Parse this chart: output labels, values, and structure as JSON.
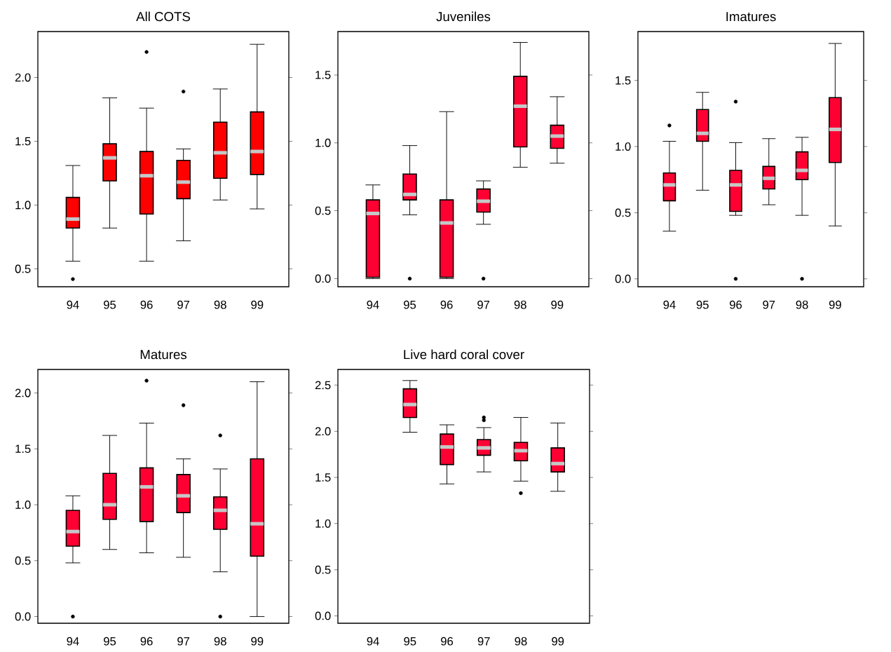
{
  "chart_data": [
    {
      "type": "box",
      "title": "All COTS",
      "categories": [
        "94",
        "95",
        "96",
        "97",
        "98",
        "99"
      ],
      "color": "#ff0000",
      "ylim": [
        0.36,
        2.36
      ],
      "yticks": [
        {
          "value": 0.5,
          "label": "0.5"
        },
        {
          "value": 1.0,
          "label": "1.0"
        },
        {
          "value": 1.5,
          "label": "1.5"
        },
        {
          "value": 2.0,
          "label": "2.0"
        }
      ],
      "boxes": [
        {
          "low": 0.56,
          "q1": 0.82,
          "median": 0.89,
          "q3": 1.06,
          "high": 1.31,
          "outliers": [
            0.42
          ]
        },
        {
          "low": 0.82,
          "q1": 1.19,
          "median": 1.37,
          "q3": 1.48,
          "high": 1.84
        },
        {
          "low": 0.56,
          "q1": 0.93,
          "median": 1.23,
          "q3": 1.42,
          "high": 1.76,
          "outliers": [
            2.2
          ]
        },
        {
          "low": 0.72,
          "q1": 1.05,
          "median": 1.18,
          "q3": 1.35,
          "high": 1.44,
          "outliers": [
            1.89
          ]
        },
        {
          "low": 1.04,
          "q1": 1.21,
          "median": 1.41,
          "q3": 1.65,
          "high": 1.91
        },
        {
          "low": 0.97,
          "q1": 1.24,
          "median": 1.42,
          "q3": 1.73,
          "high": 2.26
        }
      ]
    },
    {
      "type": "box",
      "title": "Juveniles",
      "categories": [
        "94",
        "95",
        "96",
        "97",
        "98",
        "99"
      ],
      "color": "#ff0033",
      "ylim": [
        -0.06,
        1.82
      ],
      "yticks": [
        {
          "value": 0.0,
          "label": "0.0"
        },
        {
          "value": 0.5,
          "label": "0.5"
        },
        {
          "value": 1.0,
          "label": "1.0"
        },
        {
          "value": 1.5,
          "label": "1.5"
        }
      ],
      "boxes": [
        {
          "low": 0.0,
          "q1": 0.01,
          "median": 0.48,
          "q3": 0.58,
          "high": 0.69
        },
        {
          "low": 0.47,
          "q1": 0.58,
          "median": 0.62,
          "q3": 0.77,
          "high": 0.98,
          "outliers": [
            0.0
          ]
        },
        {
          "low": 0.0,
          "q1": 0.01,
          "median": 0.41,
          "q3": 0.58,
          "high": 1.23
        },
        {
          "low": 0.4,
          "q1": 0.49,
          "median": 0.57,
          "q3": 0.66,
          "high": 0.72,
          "outliers": [
            0.0
          ]
        },
        {
          "low": 0.82,
          "q1": 0.97,
          "median": 1.27,
          "q3": 1.49,
          "high": 1.74
        },
        {
          "low": 0.85,
          "q1": 0.96,
          "median": 1.05,
          "q3": 1.13,
          "high": 1.34
        }
      ]
    },
    {
      "type": "box",
      "title": "Imatures",
      "categories": [
        "94",
        "95",
        "96",
        "97",
        "98",
        "99"
      ],
      "color": "#ff0033",
      "ylim": [
        -0.06,
        1.87
      ],
      "yticks": [
        {
          "value": 0.0,
          "label": "0.0"
        },
        {
          "value": 0.5,
          "label": "0.5"
        },
        {
          "value": 1.0,
          "label": "1.0"
        },
        {
          "value": 1.5,
          "label": "1.5"
        }
      ],
      "boxes": [
        {
          "low": 0.36,
          "q1": 0.59,
          "median": 0.71,
          "q3": 0.8,
          "high": 1.04,
          "outliers": [
            1.16
          ]
        },
        {
          "low": 0.67,
          "q1": 1.04,
          "median": 1.1,
          "q3": 1.28,
          "high": 1.41
        },
        {
          "low": 0.48,
          "q1": 0.51,
          "median": 0.71,
          "q3": 0.82,
          "high": 1.03,
          "outliers": [
            1.34,
            0.0
          ]
        },
        {
          "low": 0.56,
          "q1": 0.68,
          "median": 0.76,
          "q3": 0.85,
          "high": 1.06
        },
        {
          "low": 0.48,
          "q1": 0.75,
          "median": 0.82,
          "q3": 0.96,
          "high": 1.07,
          "outliers": [
            0.0
          ]
        },
        {
          "low": 0.4,
          "q1": 0.88,
          "median": 1.13,
          "q3": 1.37,
          "high": 1.78
        }
      ]
    },
    {
      "type": "box",
      "title": "Matures",
      "categories": [
        "94",
        "95",
        "96",
        "97",
        "98",
        "99"
      ],
      "color": "#ff0033",
      "ylim": [
        -0.06,
        2.21
      ],
      "yticks": [
        {
          "value": 0.0,
          "label": "0.0"
        },
        {
          "value": 0.5,
          "label": "0.5"
        },
        {
          "value": 1.0,
          "label": "1.0"
        },
        {
          "value": 1.5,
          "label": "1.5"
        },
        {
          "value": 2.0,
          "label": "2.0"
        }
      ],
      "boxes": [
        {
          "low": 0.48,
          "q1": 0.63,
          "median": 0.76,
          "q3": 0.95,
          "high": 1.08,
          "outliers": [
            0.0
          ]
        },
        {
          "low": 0.6,
          "q1": 0.87,
          "median": 1.0,
          "q3": 1.28,
          "high": 1.62
        },
        {
          "low": 0.57,
          "q1": 0.85,
          "median": 1.16,
          "q3": 1.33,
          "high": 1.73,
          "outliers": [
            2.11
          ]
        },
        {
          "low": 0.53,
          "q1": 0.93,
          "median": 1.08,
          "q3": 1.27,
          "high": 1.41,
          "outliers": [
            1.89
          ]
        },
        {
          "low": 0.4,
          "q1": 0.78,
          "median": 0.95,
          "q3": 1.07,
          "high": 1.32,
          "outliers": [
            1.62,
            0.0
          ]
        },
        {
          "low": 0.0,
          "q1": 0.54,
          "median": 0.83,
          "q3": 1.41,
          "high": 2.1
        }
      ]
    },
    {
      "type": "box",
      "title": "Live hard coral cover",
      "categories": [
        "94",
        "95",
        "96",
        "97",
        "98",
        "99"
      ],
      "color": "#ff0033",
      "ylim": [
        -0.08,
        2.67
      ],
      "yticks": [
        {
          "value": 0.0,
          "label": "0.0"
        },
        {
          "value": 0.5,
          "label": "0.5"
        },
        {
          "value": 1.0,
          "label": "1.0"
        },
        {
          "value": 1.5,
          "label": "1.5"
        },
        {
          "value": 2.0,
          "label": "2.0"
        },
        {
          "value": 2.5,
          "label": "2.5"
        }
      ],
      "boxes": [
        null,
        {
          "low": 1.99,
          "q1": 2.15,
          "median": 2.29,
          "q3": 2.46,
          "high": 2.55
        },
        {
          "low": 1.43,
          "q1": 1.64,
          "median": 1.83,
          "q3": 1.97,
          "high": 2.07
        },
        {
          "low": 1.56,
          "q1": 1.74,
          "median": 1.82,
          "q3": 1.91,
          "high": 2.04,
          "outliers": [
            2.15,
            2.12
          ]
        },
        {
          "low": 1.46,
          "q1": 1.68,
          "median": 1.79,
          "q3": 1.88,
          "high": 2.15,
          "outliers": [
            1.33
          ]
        },
        {
          "low": 1.35,
          "q1": 1.56,
          "median": 1.65,
          "q3": 1.82,
          "high": 2.09
        }
      ]
    }
  ]
}
